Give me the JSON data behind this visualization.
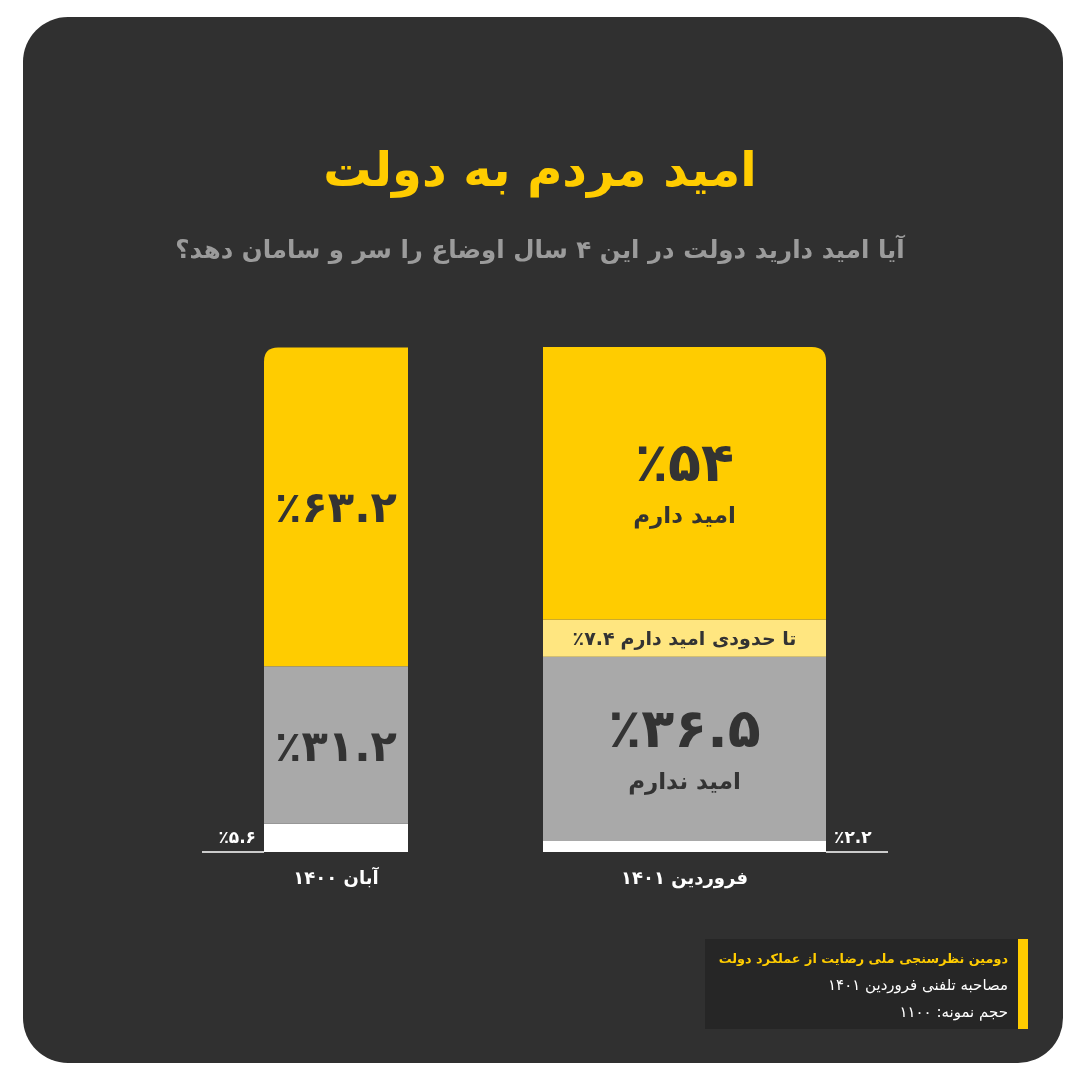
{
  "chart_data": {
    "type": "bar",
    "stacked": true,
    "title": "امید مردم به دولت",
    "subtitle": "آیا امید دارید دولت در این ۴ سال اوضاع را سر و سامان دهد؟",
    "categories": [
      "آبان ۱۴۰۰",
      "فروردین ۱۴۰۱"
    ],
    "series": [
      {
        "color": "#ffffff",
        "values": [
          5.6,
          2.2
        ],
        "value_labels": [
          "٪۵.۶",
          "٪۲.۲"
        ]
      },
      {
        "name": "امید ندارم",
        "color": "#a9a9a9",
        "values": [
          31.2,
          36.5
        ],
        "value_labels": [
          "٪۳۱.۲",
          "٪۳۶.۵"
        ]
      },
      {
        "name": "تا حدودی امید دارم",
        "color": "#ffe680",
        "values": [
          null,
          7.4
        ],
        "value_labels": [
          null,
          "٪۷.۴"
        ]
      },
      {
        "name": "امید دارم",
        "color": "#ffcc00",
        "values": [
          63.2,
          54
        ],
        "value_labels": [
          "٪۶۳.۲",
          "٪۵۴"
        ]
      }
    ],
    "annotations": [
      "دومین نظرسنجی ملی رضایت از عملکرد دولت",
      "مصاحبه تلفنی فروردین ۱۴۰۱",
      "حجم نمونه: ۱۱۰۰"
    ]
  }
}
